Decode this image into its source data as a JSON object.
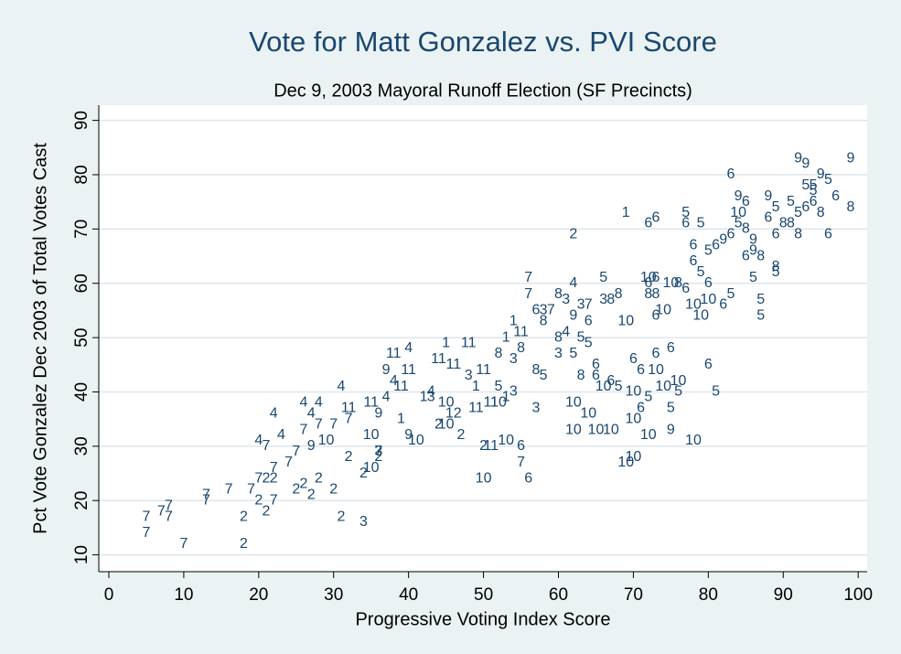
{
  "chart_data": {
    "type": "scatter",
    "title": "Vote for Matt Gonzalez vs. PVI Score",
    "subtitle": "Dec 9, 2003 Mayoral Runoff Election (SF Precincts)",
    "x_label": "Progressive Voting Index Score",
    "y_label": "Pct Vote Gonzalez Dec 2003 of Total Votes Cast",
    "color": "#1a476f",
    "grid": true,
    "xlim": [
      -1.34,
      101.2
    ],
    "ylim": [
      6.9,
      92.8
    ],
    "xticks": [
      0,
      10,
      20,
      30,
      40,
      50,
      60,
      70,
      80,
      90,
      100
    ],
    "yticks": [
      10,
      20,
      30,
      40,
      50,
      60,
      70,
      80,
      90
    ],
    "marker_labels": [
      "7",
      "7",
      "7",
      "7",
      "7",
      "7",
      "7",
      "7",
      "7",
      "2",
      "2",
      "7",
      "2",
      "7",
      "4",
      "7",
      "2",
      "2",
      "7",
      "7",
      "2",
      "4",
      "4",
      "7",
      "7",
      "2",
      "2",
      "4",
      "7",
      "4",
      "2",
      "9",
      "4",
      "7",
      "2",
      "10",
      "7",
      "4",
      "2",
      "3",
      "2",
      "7",
      "11",
      "2",
      "10",
      "11",
      "10",
      "9",
      "2",
      "3",
      "4",
      "9",
      "4",
      "11",
      "1",
      "11",
      "4",
      "11",
      "9",
      "10",
      "1",
      "3",
      "11",
      "4",
      "2",
      "10",
      "1",
      "11",
      "10",
      "12",
      "3",
      "11",
      "1",
      "11",
      "2",
      "2",
      "11",
      "10",
      "1",
      "3",
      "11",
      "8",
      "1",
      "8",
      "11",
      "3",
      "6",
      "7",
      "6",
      "10",
      "11",
      "10",
      "7",
      "7",
      "1",
      "6",
      "3",
      "8",
      "7",
      "4",
      "3",
      "7",
      "8",
      "3",
      "5",
      "4",
      "5",
      "9",
      "6",
      "5",
      "3",
      "8",
      "8",
      "10",
      "6",
      "5",
      "10",
      "10",
      "10",
      "10",
      "10",
      "1",
      "2",
      "10",
      "10",
      "10",
      "9",
      "10",
      "6",
      "6",
      "10",
      "5",
      "5",
      "10",
      "6",
      "5",
      "5",
      "6",
      "6",
      "10",
      "6",
      "6",
      "10",
      "8",
      "6",
      "10",
      "8",
      "6",
      "5",
      "6",
      "6",
      "5",
      "6",
      "6",
      "6",
      "10",
      "5",
      "10",
      "6",
      "5",
      "6",
      "9",
      "6",
      "10",
      "8",
      "9",
      "5",
      "9",
      "5",
      "5",
      "8",
      "6",
      "9",
      "5",
      "8",
      "6",
      "9",
      "9",
      "5",
      "9",
      "5",
      "9",
      "6",
      "8",
      "6",
      "5",
      "8",
      "5",
      "6",
      "8",
      "8",
      "6",
      "5",
      "5",
      "6",
      "5",
      "9",
      "6",
      "5",
      "6",
      "8",
      "5",
      "10",
      "6",
      "8",
      "10",
      "6",
      "8",
      "6",
      "10",
      "5",
      "10",
      "10",
      "6",
      "8",
      "3",
      "5",
      "8",
      "5",
      "3",
      "7",
      "2"
    ],
    "x": [
      5,
      5,
      7,
      8,
      8,
      10,
      13,
      13,
      16,
      18,
      18,
      19,
      20,
      20,
      20,
      21,
      21,
      21,
      22,
      22,
      22,
      22,
      23,
      24,
      25,
      25,
      26,
      26,
      26,
      27,
      27,
      27,
      28,
      28,
      28,
      29,
      30,
      31,
      31,
      34,
      34,
      32,
      32,
      32,
      35,
      35,
      35,
      36,
      36,
      36,
      37,
      37,
      38,
      39,
      39,
      38,
      40,
      40,
      40,
      41,
      42,
      43,
      44,
      43,
      44,
      45,
      45,
      46,
      45,
      46,
      48,
      48,
      49,
      49,
      47,
      50,
      51,
      52,
      53,
      54,
      50,
      52,
      53,
      55,
      55,
      54,
      55,
      55,
      56,
      50,
      51,
      53,
      56,
      56,
      54,
      57,
      58,
      58,
      59,
      62,
      63,
      64,
      60,
      60,
      62,
      61,
      63,
      62,
      64,
      66,
      66,
      67,
      68,
      69,
      65,
      64,
      62,
      64,
      62,
      65,
      67,
      69,
      62,
      72,
      70,
      69,
      75,
      78,
      71,
      73,
      73,
      72,
      75,
      76,
      80,
      81,
      76,
      70,
      75,
      70,
      71,
      73,
      72,
      73,
      77,
      78,
      76,
      77,
      77,
      78,
      78,
      80,
      80,
      72,
      73,
      75,
      79,
      79,
      82,
      83,
      83,
      84,
      85,
      84,
      85,
      86,
      86,
      86,
      87,
      87,
      87,
      88,
      88,
      89,
      90,
      89,
      92,
      93,
      94,
      95,
      96,
      99,
      97,
      99,
      96,
      93,
      95,
      92,
      94,
      91,
      92,
      93,
      94,
      91,
      85,
      84,
      82,
      81,
      79,
      83,
      89,
      89,
      80,
      72,
      72,
      74,
      73,
      63,
      65,
      66,
      68,
      70,
      74,
      67,
      60,
      61,
      52,
      57,
      58,
      57,
      36,
      30
    ],
    "values": [
      17,
      14,
      18,
      17,
      19,
      12,
      20,
      21,
      22,
      17,
      12,
      22,
      20,
      24,
      31,
      30,
      18,
      24,
      20,
      26,
      24,
      36,
      32,
      27,
      29,
      22,
      23,
      38,
      33,
      36,
      21,
      30,
      38,
      34,
      24,
      31,
      34,
      41,
      17,
      16,
      25,
      35,
      37,
      28,
      26,
      38,
      32,
      36,
      28,
      29,
      39,
      44,
      42,
      41,
      35,
      47,
      48,
      44,
      32,
      31,
      39,
      39,
      46,
      40,
      34,
      34,
      49,
      45,
      38,
      36,
      43,
      49,
      41,
      37,
      32,
      30,
      38,
      38,
      39,
      40,
      44,
      47,
      50,
      48,
      51,
      46,
      30,
      27,
      24,
      24,
      30,
      31,
      61,
      58,
      53,
      55,
      55,
      53,
      55,
      60,
      56,
      56,
      50,
      47,
      47,
      51,
      50,
      54,
      53,
      61,
      57,
      57,
      58,
      53,
      45,
      49,
      38,
      36,
      33,
      33,
      33,
      73,
      69,
      32,
      28,
      27,
      33,
      31,
      44,
      47,
      44,
      39,
      37,
      42,
      45,
      40,
      40,
      46,
      48,
      35,
      37,
      61,
      61,
      58,
      59,
      56,
      60,
      71,
      73,
      64,
      67,
      66,
      60,
      71,
      72,
      60,
      62,
      54,
      56,
      58,
      80,
      76,
      75,
      73,
      70,
      68,
      61,
      66,
      54,
      57,
      65,
      72,
      76,
      74,
      71,
      69,
      83,
      82,
      78,
      80,
      79,
      83,
      76,
      74,
      69,
      78,
      73,
      73,
      75,
      71,
      69,
      74,
      77,
      75,
      65,
      71,
      68,
      67,
      71,
      69,
      63,
      62,
      57,
      60,
      58,
      55,
      54,
      43,
      43,
      41,
      41,
      40,
      41,
      42,
      58,
      57,
      41,
      44,
      43,
      37,
      29,
      22
    ]
  }
}
